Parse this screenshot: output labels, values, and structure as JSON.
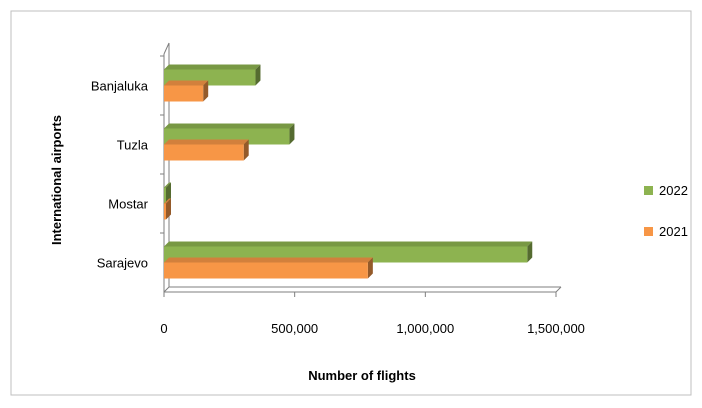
{
  "chart_data": {
    "type": "bar",
    "orientation": "horizontal",
    "style": "3d",
    "categories": [
      "Banjaluka",
      "Tuzla",
      "Mostar",
      "Sarajevo"
    ],
    "series": [
      {
        "name": "2022",
        "values": [
          350000,
          480000,
          5000,
          1390000
        ],
        "color": "#8db350"
      },
      {
        "name": "2021",
        "values": [
          150000,
          305000,
          3000,
          780000
        ],
        "color": "#f79646"
      }
    ],
    "xlabel": "Number of flights",
    "ylabel": "International airports",
    "xlim": [
      0,
      1500000
    ],
    "xticks": [
      "0",
      "500,000",
      "1,000,000",
      "1,500,000"
    ],
    "xtick_values": [
      0,
      500000,
      1000000,
      1500000
    ],
    "grid": false,
    "legend_position": "right"
  }
}
